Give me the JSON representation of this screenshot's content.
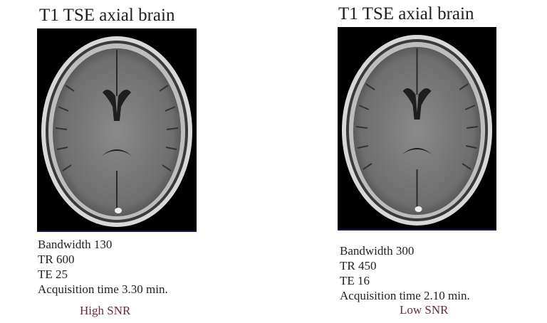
{
  "panels": [
    {
      "title": "T1 TSE axial brain",
      "params": [
        "Bandwidth 130",
        "TR 600",
        "TE 25",
        "Acquisition time 3.30 min."
      ],
      "snr_label": "High SNR"
    },
    {
      "title": "T1 TSE axial brain",
      "params": [
        "Bandwidth 300",
        "TR 450",
        "TE 16",
        "Acquisition time 2.10 min."
      ],
      "snr_label": "Low SNR"
    }
  ],
  "colors": {
    "snr_label": "#6b2a3a",
    "background": "#ffffff",
    "scan_background": "#000000"
  }
}
